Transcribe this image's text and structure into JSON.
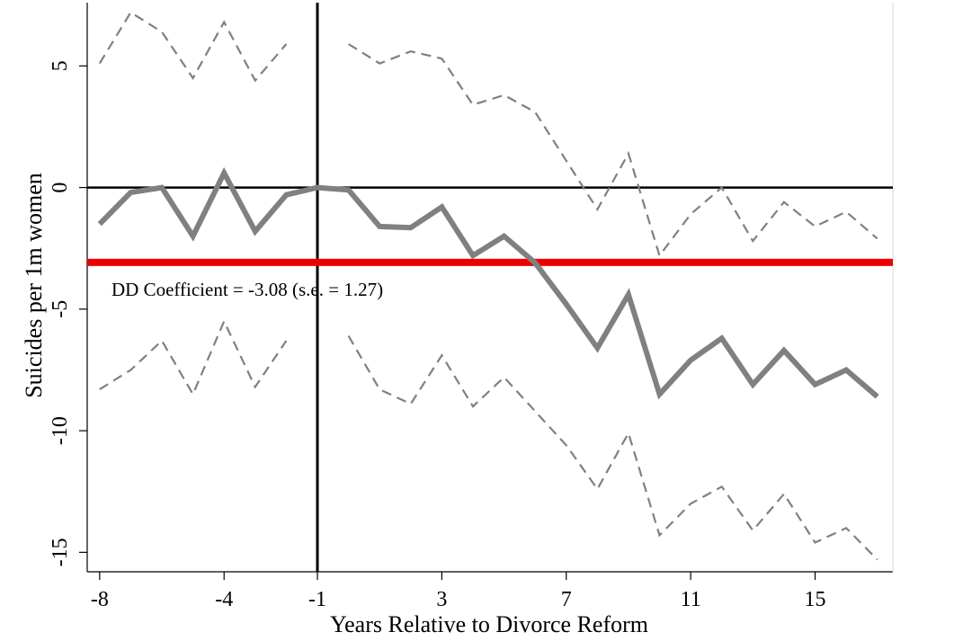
{
  "chart_data": {
    "type": "line",
    "title": "",
    "xlabel": "Years Relative to Divorce Reform",
    "ylabel": "Suicides per 1m women",
    "xlim": [
      -8.4,
      17.5
    ],
    "ylim": [
      -15.8,
      7.6
    ],
    "x_ticks": [
      -8,
      -4,
      -1,
      3,
      7,
      11,
      15
    ],
    "x_tick_labels": [
      "-8",
      "-4",
      "-1",
      "3",
      "7",
      "11",
      "15"
    ],
    "y_ticks": [
      5,
      0,
      -5,
      -10,
      -15
    ],
    "y_tick_labels": [
      "5",
      "0",
      "-5",
      "-10",
      "-15"
    ],
    "grid": false,
    "legend": "none",
    "reference_lines": {
      "vertical_x": -1,
      "horizontal_y": 0,
      "dd_coefficient_y": -3.08
    },
    "annotation": "DD Coefficient = -3.08 (s.e. = 1.27)",
    "colors": {
      "estimate": "#808080",
      "ci": "#808080",
      "dd_line": "#ee0000",
      "reference": "#000000"
    },
    "series": [
      {
        "role": "estimate",
        "x": [
          -8,
          -7,
          -6,
          -5,
          -4,
          -3,
          -2,
          -1,
          0,
          1,
          2,
          3,
          4,
          5,
          6,
          7,
          8,
          9,
          10,
          11,
          12,
          13,
          14,
          15,
          16,
          17
        ],
        "y": [
          -1.5,
          -0.2,
          0.0,
          -2.0,
          0.6,
          -1.8,
          -0.3,
          0.0,
          -0.1,
          -1.6,
          -1.65,
          -0.8,
          -2.8,
          -2.0,
          -3.1,
          -4.8,
          -6.6,
          -4.4,
          -8.5,
          -7.1,
          -6.2,
          -8.1,
          -6.7,
          -8.1,
          -7.5,
          -8.6
        ]
      },
      {
        "role": "ci-upper",
        "x": [
          -8,
          -7,
          -6,
          -5,
          -4,
          -3,
          -2
        ],
        "y": [
          5.1,
          7.2,
          6.4,
          4.5,
          6.8,
          4.4,
          5.9
        ]
      },
      {
        "role": "ci-upper",
        "x": [
          0,
          1,
          2,
          3,
          4,
          5,
          6,
          7,
          8,
          9,
          10,
          11,
          12,
          13,
          14,
          15,
          16,
          17
        ],
        "y": [
          5.9,
          5.1,
          5.6,
          5.3,
          3.4,
          3.8,
          3.1,
          1.1,
          -0.9,
          1.4,
          -2.8,
          -1.1,
          0.0,
          -2.2,
          -0.6,
          -1.6,
          -1.0,
          -2.1
        ]
      },
      {
        "role": "ci-lower",
        "x": [
          -8,
          -7,
          -6,
          -5,
          -4,
          -3,
          -2
        ],
        "y": [
          -8.3,
          -7.5,
          -6.3,
          -8.5,
          -5.5,
          -8.2,
          -6.3
        ]
      },
      {
        "role": "ci-lower",
        "x": [
          0,
          1,
          2,
          3,
          4,
          5,
          6,
          7,
          8,
          9,
          10,
          11,
          12,
          13,
          14,
          15,
          16,
          17
        ],
        "y": [
          -6.1,
          -8.3,
          -8.9,
          -6.9,
          -9.0,
          -7.8,
          -9.2,
          -10.6,
          -12.4,
          -10.1,
          -14.3,
          -13.0,
          -12.3,
          -14.1,
          -12.6,
          -14.6,
          -14.0,
          -15.3
        ]
      }
    ]
  }
}
